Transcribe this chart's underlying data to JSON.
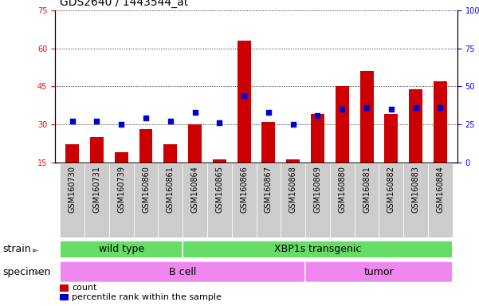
{
  "title": "GDS2640 / 1443544_at",
  "samples": [
    "GSM160730",
    "GSM160731",
    "GSM160739",
    "GSM160860",
    "GSM160861",
    "GSM160864",
    "GSM160865",
    "GSM160866",
    "GSM160867",
    "GSM160868",
    "GSM160869",
    "GSM160880",
    "GSM160881",
    "GSM160882",
    "GSM160883",
    "GSM160884"
  ],
  "counts": [
    22,
    25,
    19,
    28,
    22,
    30,
    16,
    63,
    31,
    16,
    34,
    45,
    51,
    34,
    44,
    47
  ],
  "percentile_ranks": [
    27,
    27,
    25,
    29,
    27,
    33,
    26,
    44,
    33,
    25,
    31,
    35,
    36,
    35,
    36,
    36
  ],
  "strain_groups": [
    {
      "label": "wild type",
      "start": 0,
      "end": 5
    },
    {
      "label": "XBP1s transgenic",
      "start": 5,
      "end": 16
    }
  ],
  "specimen_groups": [
    {
      "label": "B cell",
      "start": 0,
      "end": 10
    },
    {
      "label": "tumor",
      "start": 10,
      "end": 16
    }
  ],
  "ylim_left": [
    15,
    75
  ],
  "ylim_right": [
    0,
    100
  ],
  "yticks_left": [
    15,
    30,
    45,
    60,
    75
  ],
  "yticks_right": [
    0,
    25,
    50,
    75,
    100
  ],
  "bar_color": "#cc0000",
  "marker_color": "#0000cc",
  "strain_color": "#66dd66",
  "specimen_color": "#ee88ee",
  "tick_bg_color": "#cccccc",
  "bar_width": 0.55,
  "title_fontsize": 10,
  "tick_fontsize": 7,
  "label_fontsize": 9,
  "legend_fontsize": 8
}
